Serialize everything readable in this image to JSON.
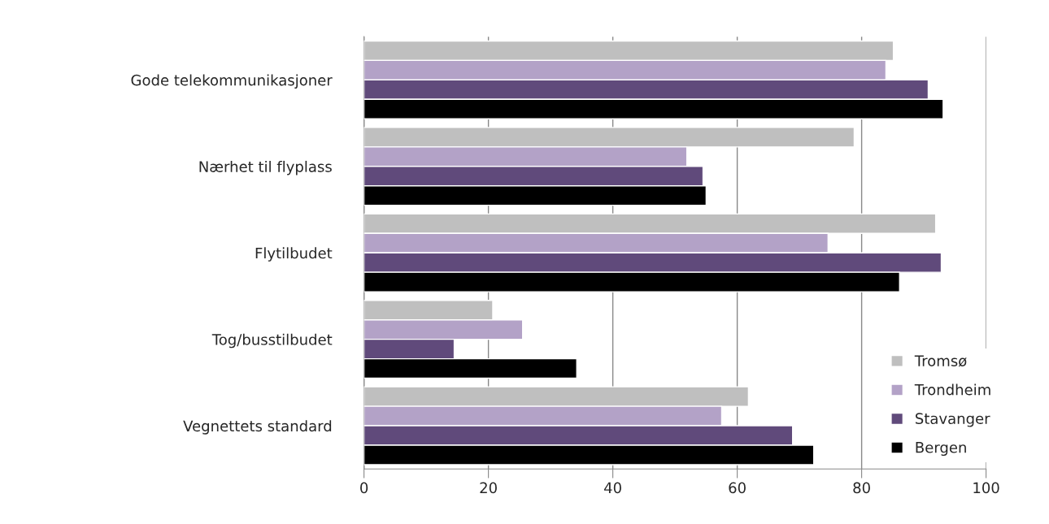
{
  "chart_data": {
    "type": "bar",
    "orientation": "horizontal",
    "categories": [
      "Gode telekommunikasjoner",
      "Nærhet til flyplass",
      "Flytilbudet",
      "Tog/busstilbudet",
      "Vegnettets standard"
    ],
    "series": [
      {
        "name": "Tromsø",
        "color": "#bfbfbf",
        "values": [
          85.1,
          78.8,
          91.9,
          20.7,
          61.8
        ]
      },
      {
        "name": "Trondheim",
        "color": "#b3a2c7",
        "values": [
          83.9,
          51.9,
          74.6,
          25.5,
          57.5
        ]
      },
      {
        "name": "Stavanger",
        "color": "#604a7b",
        "values": [
          90.7,
          54.5,
          92.8,
          14.5,
          68.9
        ]
      },
      {
        "name": "Bergen",
        "color": "#000000",
        "values": [
          93.1,
          55.0,
          86.1,
          34.2,
          72.3
        ]
      }
    ],
    "xlim": [
      0,
      100
    ],
    "xticks": [
      0,
      20,
      40,
      60,
      80,
      100
    ],
    "grid": "x",
    "legend": "bottom right"
  }
}
